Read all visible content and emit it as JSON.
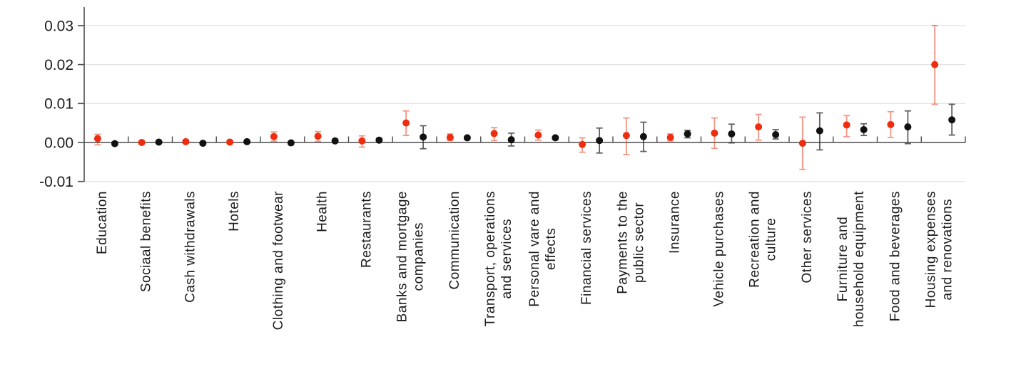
{
  "figure": {
    "description": "Dot-and-error-bar chart of estimates with confidence intervals by consumption category, red and black series",
    "background": "#ffffff"
  },
  "chart_data": {
    "type": "scatter",
    "subtype": "point-estimates-with-error-bars",
    "title": "",
    "xlabel": "",
    "ylabel": "",
    "grid": true,
    "legend": false,
    "ylim": [
      -0.011,
      0.035
    ],
    "yticks": [
      0.03,
      0.02,
      0.01,
      0.0,
      -0.01
    ],
    "ytick_labels": [
      "0.03",
      "0.02",
      "0.01",
      "0.00",
      "-0.01"
    ],
    "categories": [
      "Education",
      "Sociaal benefits",
      "Cash withdrawals",
      "Hotels",
      "Clothing and footwear",
      "Health",
      "Restaurants",
      "Banks and mortgage\ncompanies",
      "Communication",
      "Transport, operations\nand services",
      "Personal vare and\neffects",
      "Financial services",
      "Payments to the\npublic sector",
      "Insurance",
      "Vehicle purchases",
      "Recreation and\nculture",
      "Other services",
      "Furniture and\nhousehold equipment",
      "Food and beverages",
      "Housing expenses\nand renovations"
    ],
    "series": [
      {
        "name": "red-series",
        "marker_color": "#ee2d0e",
        "errorbar_color": "#ee2d0e",
        "errorbar_opacity": 0.5,
        "values": [
          0.001,
          0.0,
          0.0002,
          0.0001,
          0.0015,
          0.0016,
          0.0004,
          0.005,
          0.0013,
          0.0023,
          0.0019,
          -0.0005,
          0.0018,
          0.0013,
          0.0024,
          0.004,
          -0.0002,
          0.0045,
          0.0046,
          0.02
        ],
        "ci_low": [
          -0.0006,
          -0.0004,
          -0.0002,
          -0.0003,
          0.0003,
          0.0003,
          -0.0012,
          0.0018,
          0.0005,
          0.0005,
          0.0006,
          -0.0025,
          -0.0031,
          0.0004,
          -0.0015,
          0.0006,
          -0.0069,
          0.0015,
          0.0013,
          0.0098
        ],
        "ci_high": [
          0.0021,
          0.0004,
          0.0006,
          0.0005,
          0.0027,
          0.0028,
          0.0017,
          0.0081,
          0.0022,
          0.0038,
          0.0032,
          0.0012,
          0.0063,
          0.0022,
          0.0063,
          0.0072,
          0.0065,
          0.0069,
          0.0079,
          0.03
        ]
      },
      {
        "name": "black-series",
        "marker_color": "#111111",
        "errorbar_color": "#2c2c2c",
        "errorbar_opacity": 0.75,
        "values": [
          -0.0003,
          0.0001,
          -0.0002,
          0.0002,
          -0.0001,
          0.0004,
          0.0006,
          0.0014,
          0.0012,
          0.0007,
          0.0012,
          0.0005,
          0.0015,
          0.0022,
          0.0022,
          0.002,
          0.003,
          0.0033,
          0.004,
          0.0058
        ],
        "ci_low": [
          -0.0006,
          -0.0002,
          -0.0005,
          -0.0001,
          -0.0004,
          0.0,
          0.0002,
          -0.0016,
          0.0008,
          -0.0009,
          0.0008,
          -0.0027,
          -0.0023,
          0.0012,
          -0.0001,
          0.0009,
          -0.0019,
          0.0018,
          -0.0003,
          0.0019
        ],
        "ci_high": [
          0.0001,
          0.0004,
          0.0001,
          0.0005,
          0.0002,
          0.0008,
          0.001,
          0.0043,
          0.0015,
          0.0024,
          0.0015,
          0.0037,
          0.0052,
          0.0031,
          0.0047,
          0.0033,
          0.0076,
          0.0048,
          0.0081,
          0.0098
        ]
      }
    ],
    "colors": {
      "axis": "#4d4d4d",
      "grid": "#e3e3e3",
      "text": "#1c1c1c"
    }
  }
}
